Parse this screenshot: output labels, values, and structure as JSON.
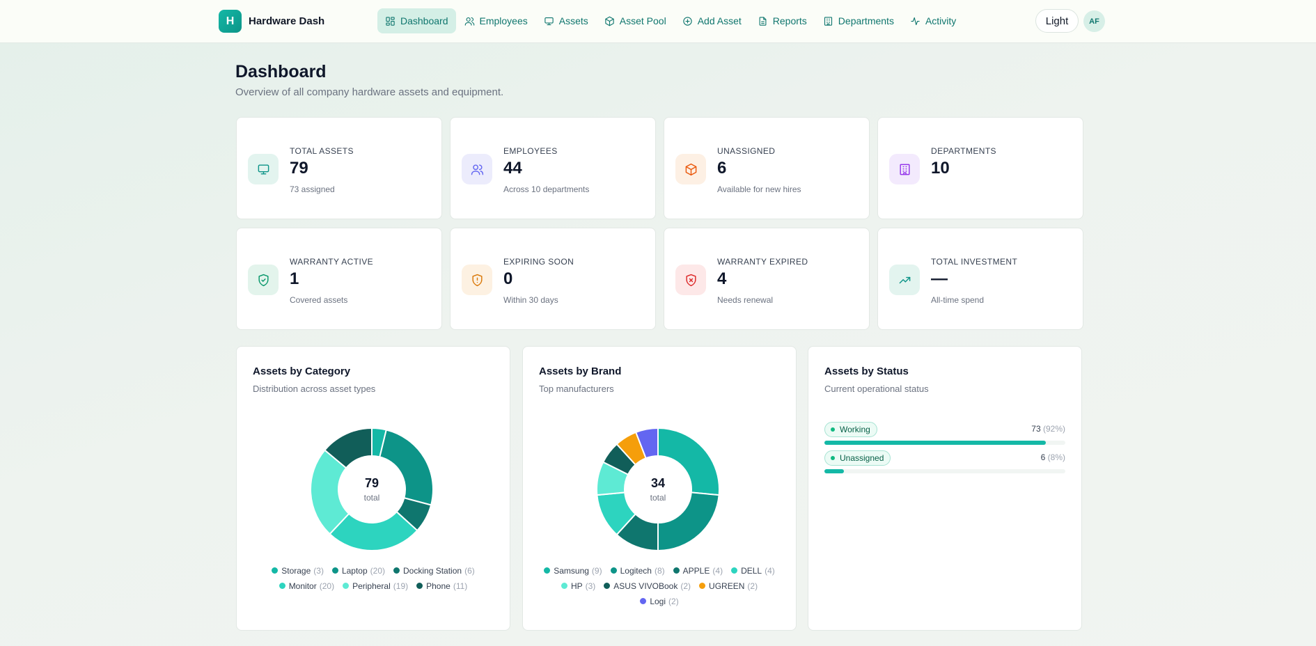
{
  "brand": {
    "logo_letter": "H",
    "name": "Hardware Dash"
  },
  "nav": [
    {
      "label": "Dashboard",
      "icon": "dashboard-icon",
      "active": true
    },
    {
      "label": "Employees",
      "icon": "users-icon",
      "active": false
    },
    {
      "label": "Assets",
      "icon": "monitor-icon",
      "active": false
    },
    {
      "label": "Asset Pool",
      "icon": "box-icon",
      "active": false
    },
    {
      "label": "Add Asset",
      "icon": "plus-circle-icon",
      "active": false
    },
    {
      "label": "Reports",
      "icon": "file-icon",
      "active": false
    },
    {
      "label": "Departments",
      "icon": "building-icon",
      "active": false
    },
    {
      "label": "Activity",
      "icon": "activity-icon",
      "active": false
    }
  ],
  "theme_toggle": "Light",
  "user": {
    "initials": "AF"
  },
  "page": {
    "title": "Dashboard",
    "subtitle": "Overview of all company hardware assets and equipment."
  },
  "stats": [
    {
      "label": "Total Assets",
      "value": "79",
      "sub": "73 assigned",
      "icon": "monitor-icon",
      "color": "#0d9488",
      "bg": "#e3f4ef"
    },
    {
      "label": "Employees",
      "value": "44",
      "sub": "Across 10 departments",
      "icon": "users-icon",
      "color": "#6366f1",
      "bg": "#ececfc"
    },
    {
      "label": "Unassigned",
      "value": "6",
      "sub": "Available for new hires",
      "icon": "box-icon",
      "color": "#ea580c",
      "bg": "#fdf0e4"
    },
    {
      "label": "Departments",
      "value": "10",
      "sub": "",
      "icon": "building-icon",
      "color": "#9333ea",
      "bg": "#f3eafd"
    },
    {
      "label": "Warranty Active",
      "value": "1",
      "sub": "Covered assets",
      "icon": "shield-check-icon",
      "color": "#059669",
      "bg": "#e3f4ec"
    },
    {
      "label": "Expiring Soon",
      "value": "0",
      "sub": "Within 30 days",
      "icon": "shield-alert-icon",
      "color": "#d97706",
      "bg": "#fdf1e2"
    },
    {
      "label": "Warranty Expired",
      "value": "4",
      "sub": "Needs renewal",
      "icon": "shield-x-icon",
      "color": "#dc2626",
      "bg": "#fde8e8"
    },
    {
      "label": "Total Investment",
      "value": "—",
      "sub": "All-time spend",
      "icon": "trending-up-icon",
      "color": "#0d9488",
      "bg": "#e3f4ef"
    }
  ],
  "panels": {
    "category": {
      "title": "Assets by Category",
      "subtitle": "Distribution across asset types",
      "total": "79",
      "total_label": "total"
    },
    "brand": {
      "title": "Assets by Brand",
      "subtitle": "Top manufacturers",
      "total": "34",
      "total_label": "total"
    },
    "status": {
      "title": "Assets by Status",
      "subtitle": "Current operational status",
      "items": [
        {
          "label": "Working",
          "count": "73",
          "pct_text": "(92%)",
          "fraction": 0.92
        },
        {
          "label": "Unassigned",
          "count": "6",
          "pct_text": "(8%)",
          "fraction": 0.08
        }
      ]
    }
  },
  "chart_data": [
    {
      "type": "pie",
      "title": "Assets by Category",
      "categories": [
        "Storage",
        "Laptop",
        "Docking Station",
        "Monitor",
        "Peripheral",
        "Phone"
      ],
      "values": [
        3,
        20,
        6,
        20,
        19,
        11
      ],
      "colors": [
        "#14b8a6",
        "#0d9488",
        "#0f766e",
        "#2dd4bf",
        "#5eead4",
        "#115e59"
      ],
      "legend_rows": [
        [
          0,
          1,
          2
        ],
        [
          3,
          4,
          5
        ]
      ]
    },
    {
      "type": "pie",
      "title": "Assets by Brand",
      "categories": [
        "Samsung",
        "Logitech",
        "APPLE",
        "DELL",
        "HP",
        "ASUS VIVOBook",
        "UGREEN",
        "Logi"
      ],
      "values": [
        9,
        8,
        4,
        4,
        3,
        2,
        2,
        2
      ],
      "colors": [
        "#14b8a6",
        "#0d9488",
        "#0f766e",
        "#2dd4bf",
        "#5eead4",
        "#115e59",
        "#f59e0b",
        "#6366f1"
      ],
      "legend_rows": [
        [
          0,
          1,
          2,
          3
        ],
        [
          4,
          5,
          6
        ],
        [
          7
        ]
      ]
    }
  ]
}
